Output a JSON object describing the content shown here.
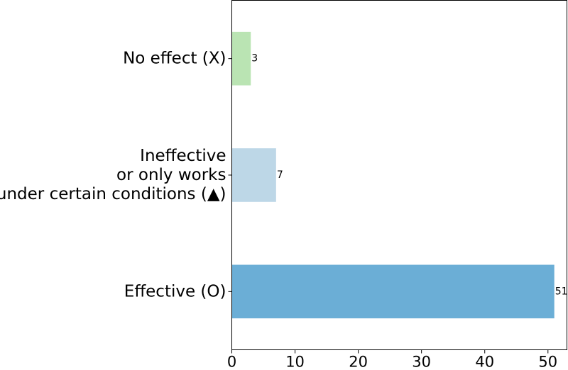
{
  "chart_data": {
    "type": "bar",
    "orientation": "horizontal",
    "title": "",
    "xlabel": "",
    "ylabel": "",
    "xlim": [
      0,
      53
    ],
    "grid": false,
    "categories": [
      [
        "Effective (O)"
      ],
      [
        "Ineffective",
        "or only works",
        "under certain conditions (▲)"
      ],
      [
        "No effect (X)"
      ]
    ],
    "values": [
      51,
      7,
      3
    ],
    "colors": [
      "#6baed6",
      "#bdd7e7",
      "#bae4b3"
    ],
    "x_ticks": [
      0,
      10,
      20,
      30,
      40,
      50
    ],
    "x_tick_labels": [
      "0",
      "10",
      "20",
      "30",
      "40",
      "50"
    ]
  }
}
